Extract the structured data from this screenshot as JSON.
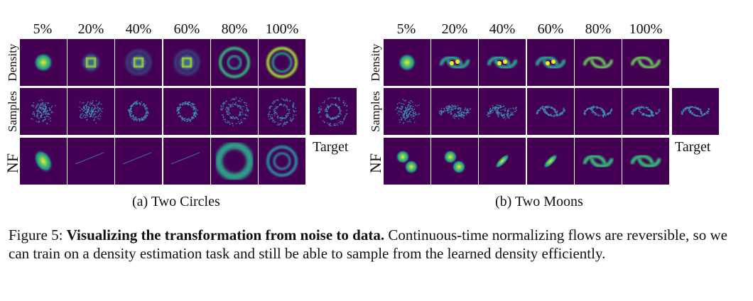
{
  "figure": {
    "percent_labels": [
      "5%",
      "20%",
      "40%",
      "60%",
      "80%",
      "100%"
    ],
    "row_labels": [
      "Density",
      "Samples",
      "NF"
    ],
    "target_label": "Target",
    "panels": [
      {
        "subcaption": "(a) Two Circles"
      },
      {
        "subcaption": "(b) Two Moons"
      }
    ],
    "colors": {
      "bg": "#440154",
      "mid": "#21918c",
      "high": "#fde725"
    }
  },
  "caption": {
    "label": "Figure 5:",
    "bold": "Visualizing the transformation from noise to data.",
    "text": "Continuous-time normalizing flows are reversible, so we can train on a density estimation task and still be able to sample from the learned density efficiently."
  }
}
